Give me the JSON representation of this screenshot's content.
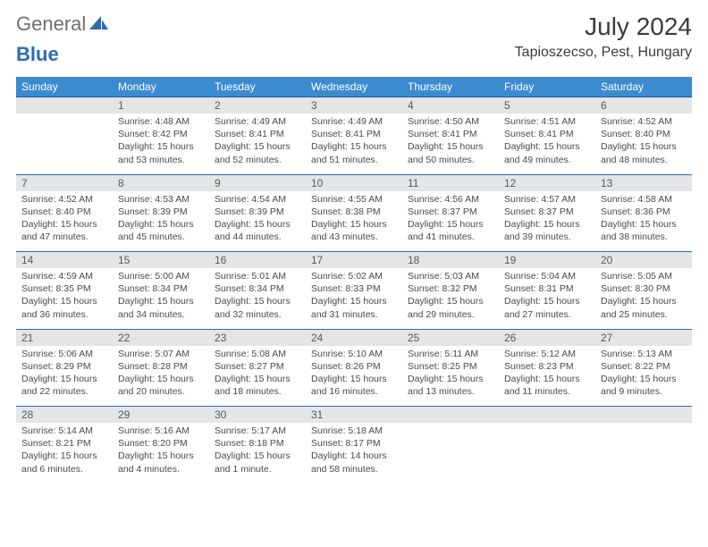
{
  "brand": {
    "part1": "General",
    "part2": "Blue"
  },
  "title": "July 2024",
  "location": "Tapioszecso, Pest, Hungary",
  "colors": {
    "header_bg": "#3b8bd0",
    "header_border": "#1f5d94",
    "row_divider": "#2a6bb4",
    "daynum_bg": "#e4e5e6",
    "text_primary": "#3b3b3b",
    "text_muted": "#6f6f6f",
    "brand_accent": "#2a6bb4"
  },
  "weekdays": [
    "Sunday",
    "Monday",
    "Tuesday",
    "Wednesday",
    "Thursday",
    "Friday",
    "Saturday"
  ],
  "start_offset": 1,
  "days": [
    {
      "n": 1,
      "sunrise": "4:48 AM",
      "sunset": "8:42 PM",
      "daylight": "15 hours and 53 minutes."
    },
    {
      "n": 2,
      "sunrise": "4:49 AM",
      "sunset": "8:41 PM",
      "daylight": "15 hours and 52 minutes."
    },
    {
      "n": 3,
      "sunrise": "4:49 AM",
      "sunset": "8:41 PM",
      "daylight": "15 hours and 51 minutes."
    },
    {
      "n": 4,
      "sunrise": "4:50 AM",
      "sunset": "8:41 PM",
      "daylight": "15 hours and 50 minutes."
    },
    {
      "n": 5,
      "sunrise": "4:51 AM",
      "sunset": "8:41 PM",
      "daylight": "15 hours and 49 minutes."
    },
    {
      "n": 6,
      "sunrise": "4:52 AM",
      "sunset": "8:40 PM",
      "daylight": "15 hours and 48 minutes."
    },
    {
      "n": 7,
      "sunrise": "4:52 AM",
      "sunset": "8:40 PM",
      "daylight": "15 hours and 47 minutes."
    },
    {
      "n": 8,
      "sunrise": "4:53 AM",
      "sunset": "8:39 PM",
      "daylight": "15 hours and 45 minutes."
    },
    {
      "n": 9,
      "sunrise": "4:54 AM",
      "sunset": "8:39 PM",
      "daylight": "15 hours and 44 minutes."
    },
    {
      "n": 10,
      "sunrise": "4:55 AM",
      "sunset": "8:38 PM",
      "daylight": "15 hours and 43 minutes."
    },
    {
      "n": 11,
      "sunrise": "4:56 AM",
      "sunset": "8:37 PM",
      "daylight": "15 hours and 41 minutes."
    },
    {
      "n": 12,
      "sunrise": "4:57 AM",
      "sunset": "8:37 PM",
      "daylight": "15 hours and 39 minutes."
    },
    {
      "n": 13,
      "sunrise": "4:58 AM",
      "sunset": "8:36 PM",
      "daylight": "15 hours and 38 minutes."
    },
    {
      "n": 14,
      "sunrise": "4:59 AM",
      "sunset": "8:35 PM",
      "daylight": "15 hours and 36 minutes."
    },
    {
      "n": 15,
      "sunrise": "5:00 AM",
      "sunset": "8:34 PM",
      "daylight": "15 hours and 34 minutes."
    },
    {
      "n": 16,
      "sunrise": "5:01 AM",
      "sunset": "8:34 PM",
      "daylight": "15 hours and 32 minutes."
    },
    {
      "n": 17,
      "sunrise": "5:02 AM",
      "sunset": "8:33 PM",
      "daylight": "15 hours and 31 minutes."
    },
    {
      "n": 18,
      "sunrise": "5:03 AM",
      "sunset": "8:32 PM",
      "daylight": "15 hours and 29 minutes."
    },
    {
      "n": 19,
      "sunrise": "5:04 AM",
      "sunset": "8:31 PM",
      "daylight": "15 hours and 27 minutes."
    },
    {
      "n": 20,
      "sunrise": "5:05 AM",
      "sunset": "8:30 PM",
      "daylight": "15 hours and 25 minutes."
    },
    {
      "n": 21,
      "sunrise": "5:06 AM",
      "sunset": "8:29 PM",
      "daylight": "15 hours and 22 minutes."
    },
    {
      "n": 22,
      "sunrise": "5:07 AM",
      "sunset": "8:28 PM",
      "daylight": "15 hours and 20 minutes."
    },
    {
      "n": 23,
      "sunrise": "5:08 AM",
      "sunset": "8:27 PM",
      "daylight": "15 hours and 18 minutes."
    },
    {
      "n": 24,
      "sunrise": "5:10 AM",
      "sunset": "8:26 PM",
      "daylight": "15 hours and 16 minutes."
    },
    {
      "n": 25,
      "sunrise": "5:11 AM",
      "sunset": "8:25 PM",
      "daylight": "15 hours and 13 minutes."
    },
    {
      "n": 26,
      "sunrise": "5:12 AM",
      "sunset": "8:23 PM",
      "daylight": "15 hours and 11 minutes."
    },
    {
      "n": 27,
      "sunrise": "5:13 AM",
      "sunset": "8:22 PM",
      "daylight": "15 hours and 9 minutes."
    },
    {
      "n": 28,
      "sunrise": "5:14 AM",
      "sunset": "8:21 PM",
      "daylight": "15 hours and 6 minutes."
    },
    {
      "n": 29,
      "sunrise": "5:16 AM",
      "sunset": "8:20 PM",
      "daylight": "15 hours and 4 minutes."
    },
    {
      "n": 30,
      "sunrise": "5:17 AM",
      "sunset": "8:18 PM",
      "daylight": "15 hours and 1 minute."
    },
    {
      "n": 31,
      "sunrise": "5:18 AM",
      "sunset": "8:17 PM",
      "daylight": "14 hours and 58 minutes."
    }
  ],
  "labels": {
    "sunrise": "Sunrise: ",
    "sunset": "Sunset: ",
    "daylight": "Daylight: "
  }
}
